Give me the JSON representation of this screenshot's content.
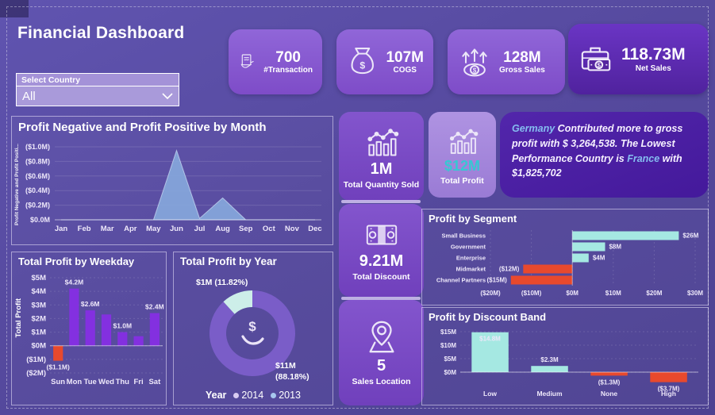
{
  "page": {
    "title": "Financial Dashboard"
  },
  "slicer": {
    "label": "Select Country",
    "value": "All"
  },
  "kpi_cards": [
    {
      "icon": "payment-hand-icon",
      "value": "700",
      "label": "#Transaction"
    },
    {
      "icon": "money-bag-icon",
      "value": "107M",
      "label": "COGS"
    },
    {
      "icon": "growth-arrows-icon",
      "value": "128M",
      "label": "Gross Sales"
    },
    {
      "icon": "briefcase-money-icon",
      "value": "118.73M",
      "label": "Net Sales"
    }
  ],
  "tiles": [
    {
      "icon": "trend-chart-icon",
      "value": "1M",
      "label": "Total Quantity Sold"
    },
    {
      "icon": "trend-chart-icon",
      "value": "$12M",
      "label": "Total Profit",
      "value_color": "#35c8d2"
    },
    {
      "icon": "banknotes-icon",
      "value": "9.21M",
      "label": "Total Discount"
    },
    {
      "icon": "map-pin-icon",
      "value": "5",
      "label": "Sales Location"
    }
  ],
  "insight": {
    "parts": [
      {
        "text": "Germany",
        "highlight": true
      },
      {
        "text": " Contributed more to gross profit with $ 3,264,538. The Lowest Performance Country is ",
        "highlight": false
      },
      {
        "text": "France",
        "highlight": true
      },
      {
        "text": " with $1,825,702",
        "highlight": false
      }
    ]
  },
  "chart_data": [
    {
      "id": "profit_by_month",
      "type": "area",
      "title": "Profit Negative and Profit Positive by Month",
      "ylabel": "Profit Negative and Profit Positi...",
      "categories": [
        "Jan",
        "Feb",
        "Mar",
        "Apr",
        "May",
        "Jun",
        "Jul",
        "Aug",
        "Sep",
        "Oct",
        "Nov",
        "Dec"
      ],
      "values": [
        0,
        0,
        0,
        0,
        0,
        0.95,
        0.02,
        0.3,
        0,
        0,
        0,
        0
      ],
      "ytick_values": [
        0,
        0.2,
        0.4,
        0.6,
        0.8,
        1.0
      ],
      "ytick_labels": [
        "$0.0M",
        "($0.2M)",
        "($0.4M)",
        "($0.6M)",
        "($0.8M)",
        "($1.0M)"
      ],
      "ylim": [
        0,
        1.0
      ],
      "fill": "rgba(133,167,219,.92)"
    },
    {
      "id": "profit_by_weekday",
      "type": "bar",
      "title": "Total Profit by Weekday",
      "ylabel": "Total Profit",
      "categories": [
        "Sun",
        "Mon",
        "Tue",
        "Wed",
        "Thu",
        "Fri",
        "Sat"
      ],
      "values": [
        -1.1,
        4.2,
        2.6,
        2.3,
        1.0,
        0.7,
        2.4
      ],
      "data_labels": [
        "($1.1M)",
        "$4.2M",
        "$2.6M",
        "",
        "$1.0M",
        "",
        "$2.4M"
      ],
      "ytick_values": [
        -2,
        -1,
        0,
        1,
        2,
        3,
        4,
        5
      ],
      "ytick_labels": [
        "($2M)",
        "($1M)",
        "$0M",
        "$1M",
        "$2M",
        "$3M",
        "$4M",
        "$5M"
      ],
      "ylim": [
        -2,
        5
      ],
      "colors": {
        "positive": "#8330e0",
        "negative": "#e8492d"
      }
    },
    {
      "id": "profit_by_year",
      "type": "pie",
      "title": "Total Profit by Year",
      "legend_title": "Year",
      "label_small": "$1M (11.82%)",
      "label_big_line1": "$11M",
      "label_big_line2": "(88.18%)",
      "slices": [
        {
          "name": "2014",
          "value_m": 11,
          "pct": 88.18,
          "color": "#7a5dc8",
          "legend_color": "#d9ccf2"
        },
        {
          "name": "2013",
          "value_m": 1,
          "pct": 11.82,
          "color": "#cdeee9",
          "legend_color": "#a8c7ee"
        }
      ]
    },
    {
      "id": "profit_by_segment",
      "type": "bar-horizontal",
      "title": "Profit by Segment",
      "categories": [
        "Small Business",
        "Government",
        "Enterprise",
        "Midmarket",
        "Channel Partners"
      ],
      "values": [
        26,
        8,
        4,
        -12,
        -15
      ],
      "data_labels": [
        "$26M",
        "$8M",
        "$4M",
        "($12M)",
        "($15M)"
      ],
      "xtick_values": [
        -20,
        -10,
        0,
        10,
        20,
        30
      ],
      "xtick_labels": [
        "($20M)",
        "($10M)",
        "$0M",
        "$10M",
        "$20M",
        "$30M"
      ],
      "xlim": [
        -20,
        30
      ],
      "colors": {
        "positive": "#a5e8e2",
        "negative": "#e8492d"
      }
    },
    {
      "id": "profit_by_discount_band",
      "type": "bar",
      "title": "Profit by Discount Band",
      "categories": [
        "Low",
        "Medium",
        "None",
        "High"
      ],
      "values": [
        14.8,
        2.3,
        -1.3,
        -3.7
      ],
      "data_labels": [
        "$14.8M",
        "$2.3M",
        "($1.3M)",
        "($3.7M)"
      ],
      "ytick_values": [
        0,
        5,
        10,
        15
      ],
      "ytick_labels": [
        "$0M",
        "$5M",
        "$10M",
        "$15M"
      ],
      "ylim": [
        -5,
        15
      ],
      "colors": {
        "positive": "#a5e8e2",
        "negative": "#e8492d"
      }
    }
  ],
  "colors": {
    "canvas": "#564a9f",
    "card": "#8657cf",
    "card_dark": "#5b28b0",
    "tile": "#7b4cc6",
    "tile_light": "#a286da",
    "insight_bg": "#4a1fa0",
    "teal": "#a5e8e2",
    "red": "#e8492d",
    "purple_bar": "#8330e0",
    "area_fill": "#84a7dc",
    "donut_2014": "#7a5dc8",
    "donut_2013": "#cdeee9",
    "highlight_blue": "#85bdf0",
    "accent_value": "#35c8d2"
  }
}
